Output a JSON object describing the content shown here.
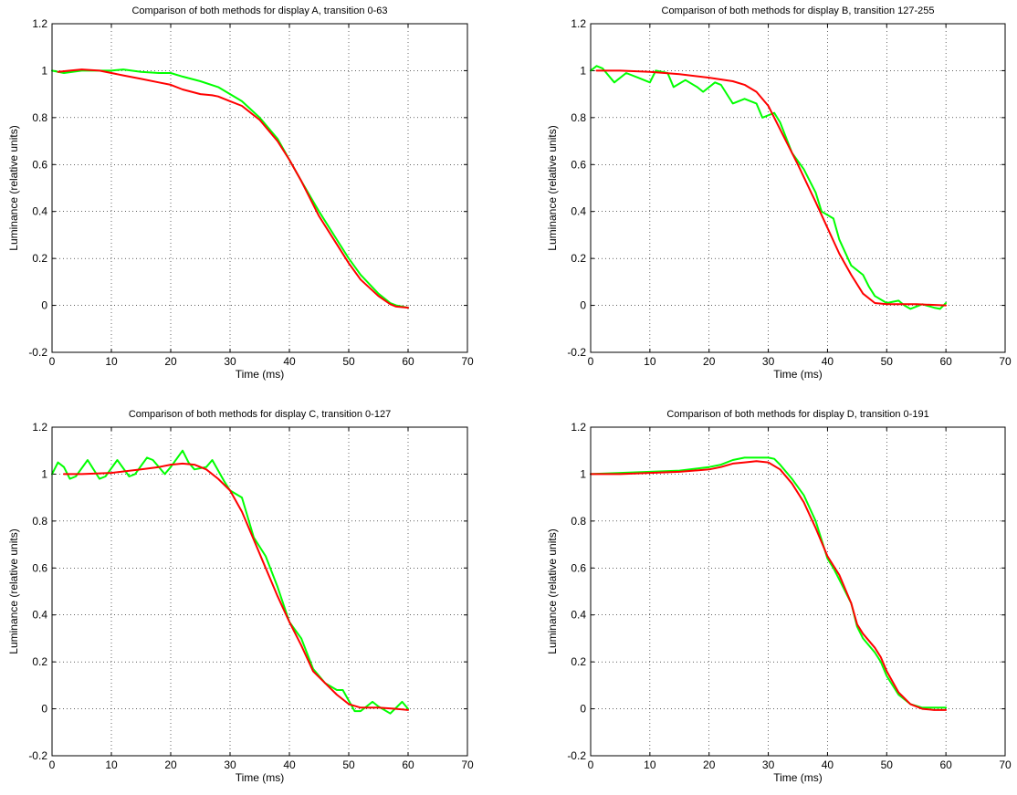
{
  "chart_data": [
    {
      "type": "line",
      "title": "Comparison of both methods for display A, transition 0-63",
      "xlabel": "Time (ms)",
      "ylabel": "Luminance (relative units)",
      "xlim": [
        0,
        70
      ],
      "ylim": [
        -0.2,
        1.2
      ],
      "xticks": [
        "0",
        "10",
        "20",
        "30",
        "40",
        "50",
        "60",
        "70"
      ],
      "yticks": [
        "-0.2",
        "0",
        "0.2",
        "0.4",
        "0.6",
        "0.8",
        "1",
        "1.2"
      ],
      "grid": true,
      "series": [
        {
          "color": "#00ff00",
          "x": [
            0,
            2,
            5,
            8,
            10,
            12,
            15,
            18,
            20,
            22,
            25,
            28,
            30,
            32,
            35,
            38,
            40,
            42,
            45,
            48,
            50,
            52,
            55,
            57,
            58,
            60
          ],
          "y": [
            1.0,
            0.99,
            1.0,
            1.0,
            1.0,
            1.005,
            0.995,
            0.99,
            0.99,
            0.975,
            0.955,
            0.93,
            0.9,
            0.87,
            0.8,
            0.71,
            0.62,
            0.53,
            0.4,
            0.28,
            0.2,
            0.13,
            0.05,
            0.01,
            0.0,
            -0.01
          ]
        },
        {
          "color": "#ff0000",
          "x": [
            1,
            3,
            5,
            8,
            10,
            12,
            15,
            18,
            20,
            22,
            25,
            27,
            28,
            30,
            32,
            35,
            38,
            40,
            42,
            45,
            48,
            50,
            52,
            55,
            57,
            58,
            60
          ],
          "y": [
            0.995,
            1.0,
            1.005,
            1.0,
            0.99,
            0.98,
            0.965,
            0.95,
            0.94,
            0.92,
            0.9,
            0.895,
            0.89,
            0.87,
            0.85,
            0.79,
            0.7,
            0.62,
            0.53,
            0.38,
            0.26,
            0.18,
            0.11,
            0.04,
            0.005,
            -0.005,
            -0.01
          ]
        }
      ]
    },
    {
      "type": "line",
      "title": "Comparison of both methods for display B, transition 127-255",
      "xlabel": "Time (ms)",
      "ylabel": "Luminance (relative units)",
      "xlim": [
        0,
        70
      ],
      "ylim": [
        -0.2,
        1.2
      ],
      "xticks": [
        "0",
        "10",
        "20",
        "30",
        "40",
        "50",
        "60",
        "70"
      ],
      "yticks": [
        "-0.2",
        "0",
        "0.2",
        "0.4",
        "0.6",
        "0.8",
        "1",
        "1.2"
      ],
      "grid": true,
      "series": [
        {
          "color": "#00ff00",
          "x": [
            0,
            1,
            2,
            4,
            6,
            8,
            10,
            11,
            13,
            14,
            16,
            18,
            19,
            21,
            22,
            24,
            26,
            28,
            29,
            31,
            32,
            34,
            36,
            38,
            39,
            41,
            42,
            44,
            46,
            47,
            48,
            50,
            52,
            53,
            54,
            56,
            58,
            59,
            60
          ],
          "y": [
            1.0,
            1.02,
            1.01,
            0.95,
            0.99,
            0.97,
            0.95,
            1.0,
            0.99,
            0.93,
            0.96,
            0.93,
            0.91,
            0.95,
            0.94,
            0.86,
            0.88,
            0.86,
            0.8,
            0.82,
            0.78,
            0.65,
            0.58,
            0.48,
            0.4,
            0.37,
            0.28,
            0.17,
            0.13,
            0.08,
            0.04,
            0.01,
            0.02,
            0.0,
            -0.015,
            0.005,
            -0.01,
            -0.015,
            0.01
          ]
        },
        {
          "color": "#ff0000",
          "x": [
            1,
            5,
            10,
            15,
            20,
            24,
            26,
            28,
            30,
            32,
            35,
            38,
            40,
            42,
            44,
            46,
            48,
            50,
            55,
            60
          ],
          "y": [
            1.0,
            1.0,
            0.995,
            0.985,
            0.97,
            0.955,
            0.94,
            0.91,
            0.85,
            0.75,
            0.6,
            0.44,
            0.33,
            0.22,
            0.13,
            0.05,
            0.01,
            0.005,
            0.005,
            0.0
          ]
        }
      ]
    },
    {
      "type": "line",
      "title": "Comparison of both methods for display C, transition 0-127",
      "xlabel": "Time (ms)",
      "ylabel": "Luminance (relative units)",
      "xlim": [
        0,
        70
      ],
      "ylim": [
        -0.2,
        1.2
      ],
      "xticks": [
        "0",
        "10",
        "20",
        "30",
        "40",
        "50",
        "60",
        "70"
      ],
      "yticks": [
        "-0.2",
        "0",
        "0.2",
        "0.4",
        "0.6",
        "0.8",
        "1",
        "1.2"
      ],
      "grid": true,
      "series": [
        {
          "color": "#00ff00",
          "x": [
            0,
            1,
            2,
            3,
            4,
            6,
            8,
            9,
            11,
            13,
            14,
            16,
            17,
            19,
            20,
            22,
            23,
            24,
            26,
            27,
            29,
            30,
            32,
            34,
            36,
            38,
            40,
            42,
            44,
            46,
            48,
            49,
            51,
            52,
            54,
            55,
            57,
            59,
            60
          ],
          "y": [
            1.0,
            1.05,
            1.03,
            0.98,
            0.99,
            1.06,
            0.98,
            0.99,
            1.06,
            0.99,
            1.0,
            1.07,
            1.06,
            1.0,
            1.03,
            1.1,
            1.05,
            1.02,
            1.03,
            1.06,
            0.97,
            0.93,
            0.9,
            0.73,
            0.65,
            0.52,
            0.37,
            0.3,
            0.17,
            0.11,
            0.08,
            0.08,
            -0.01,
            -0.01,
            0.03,
            0.01,
            -0.02,
            0.03,
            0.0
          ]
        },
        {
          "color": "#ff0000",
          "x": [
            2,
            5,
            10,
            15,
            18,
            20,
            22,
            24,
            26,
            28,
            30,
            32,
            34,
            36,
            38,
            40,
            42,
            44,
            46,
            48,
            50,
            52,
            55,
            58,
            60
          ],
          "y": [
            1.0,
            1.0,
            1.005,
            1.02,
            1.03,
            1.04,
            1.045,
            1.04,
            1.02,
            0.98,
            0.93,
            0.84,
            0.72,
            0.6,
            0.48,
            0.37,
            0.27,
            0.16,
            0.11,
            0.06,
            0.02,
            0.005,
            0.005,
            0.0,
            -0.005
          ]
        }
      ]
    },
    {
      "type": "line",
      "title": "Comparison of both methods for display D, transition 0-191",
      "xlabel": "Time (ms)",
      "ylabel": "Luminance (relative units)",
      "xlim": [
        0,
        70
      ],
      "ylim": [
        -0.2,
        1.2
      ],
      "xticks": [
        "0",
        "10",
        "20",
        "30",
        "40",
        "50",
        "60",
        "70"
      ],
      "yticks": [
        "-0.2",
        "0",
        "0.2",
        "0.4",
        "0.6",
        "0.8",
        "1",
        "1.2"
      ],
      "grid": true,
      "series": [
        {
          "color": "#00ff00",
          "x": [
            0,
            5,
            10,
            15,
            20,
            22,
            24,
            26,
            28,
            30,
            31,
            32,
            34,
            36,
            38,
            40,
            41,
            42,
            44,
            45,
            46,
            48,
            49,
            50,
            52,
            54,
            56,
            58,
            60
          ],
          "y": [
            1.0,
            1.005,
            1.01,
            1.015,
            1.03,
            1.04,
            1.06,
            1.07,
            1.07,
            1.07,
            1.065,
            1.04,
            0.98,
            0.91,
            0.8,
            0.64,
            0.6,
            0.55,
            0.45,
            0.35,
            0.3,
            0.24,
            0.2,
            0.14,
            0.06,
            0.02,
            0.005,
            0.005,
            0.005
          ]
        },
        {
          "color": "#ff0000",
          "x": [
            0,
            5,
            10,
            15,
            20,
            22,
            24,
            26,
            28,
            30,
            32,
            34,
            36,
            38,
            40,
            42,
            44,
            45,
            46,
            48,
            49,
            50,
            52,
            54,
            56,
            58,
            60
          ],
          "y": [
            1.0,
            1.0,
            1.005,
            1.01,
            1.02,
            1.03,
            1.045,
            1.05,
            1.055,
            1.05,
            1.02,
            0.96,
            0.88,
            0.77,
            0.65,
            0.57,
            0.45,
            0.36,
            0.32,
            0.26,
            0.22,
            0.16,
            0.07,
            0.02,
            0.0,
            -0.005,
            -0.005
          ]
        }
      ]
    }
  ]
}
